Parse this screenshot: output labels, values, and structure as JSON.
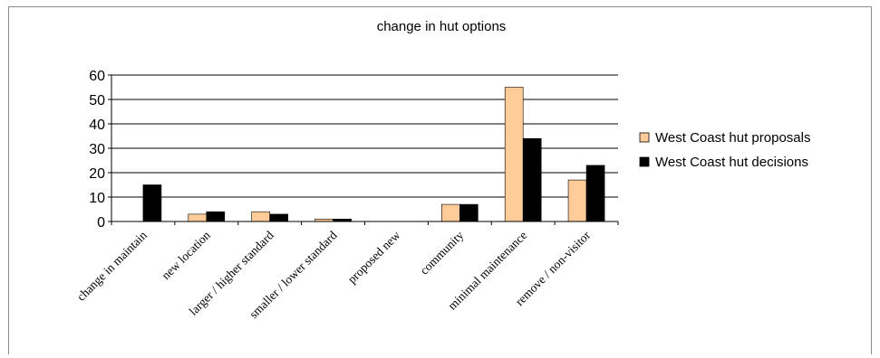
{
  "chart_data": {
    "type": "bar",
    "title": "change in hut options",
    "xlabel": "",
    "ylabel": "",
    "ylim": [
      0,
      60
    ],
    "yticks": [
      0,
      10,
      20,
      30,
      40,
      50,
      60
    ],
    "grid": true,
    "legend_position": "right",
    "categories": [
      "change in maintain",
      "new location",
      "larger / higher standard",
      "smaller / lower standard",
      "proposed new",
      "community",
      "minimal maintenance",
      "remove / non-visitor"
    ],
    "series": [
      {
        "name": "West Coast hut proposals",
        "color": "#ffcc99",
        "values": [
          0,
          3,
          4,
          1,
          0,
          7,
          55,
          17
        ]
      },
      {
        "name": "West Coast hut decisions",
        "color": "#000000",
        "values": [
          15,
          4,
          3,
          1,
          0,
          7,
          34,
          23
        ]
      }
    ]
  }
}
